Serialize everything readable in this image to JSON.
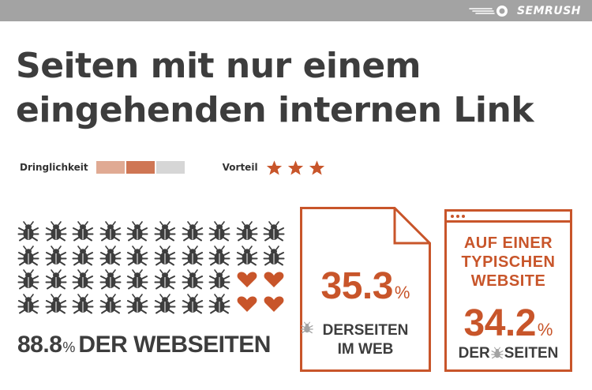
{
  "brand": {
    "name": "SEMRUSH",
    "logo_icon": "semrush-fireball-icon"
  },
  "title": {
    "line1": "Seiten mit nur einem",
    "line2": "eingehenden internen Link"
  },
  "urgency": {
    "label": "Dringlichkeit",
    "level": 2,
    "max": 3,
    "segment_colors": [
      "#e0aa93",
      "#cf7654",
      "#d6d6d6"
    ]
  },
  "benefit": {
    "label": "Vorteil",
    "stars": 3,
    "star_color": "#c8552a"
  },
  "grid": {
    "rows": 4,
    "cols": 10,
    "bug_count": 36,
    "heart_count": 4,
    "bug_icon": "bug-icon",
    "heart_icon": "heart-icon",
    "bug_color": "#3d3d3d",
    "heart_color": "#c8552a"
  },
  "left_stat": {
    "value": "88.8",
    "percent": "%",
    "text": "DER WEBSEITEN"
  },
  "web_stat": {
    "value": "35.3",
    "percent": "%",
    "line1_a": "DER",
    "line1_b": "SEITEN",
    "line2": "IM WEB"
  },
  "site_stat": {
    "head1": "AUF EINER",
    "head2": "TYPISCHEN",
    "head3": "WEBSITE",
    "value": "34.2",
    "percent": "%",
    "line_a": "DER",
    "line_b": "SEITEN"
  },
  "colors": {
    "accent": "#c8552a",
    "text": "#3d3d3d",
    "topbar": "#a3a3a3"
  }
}
